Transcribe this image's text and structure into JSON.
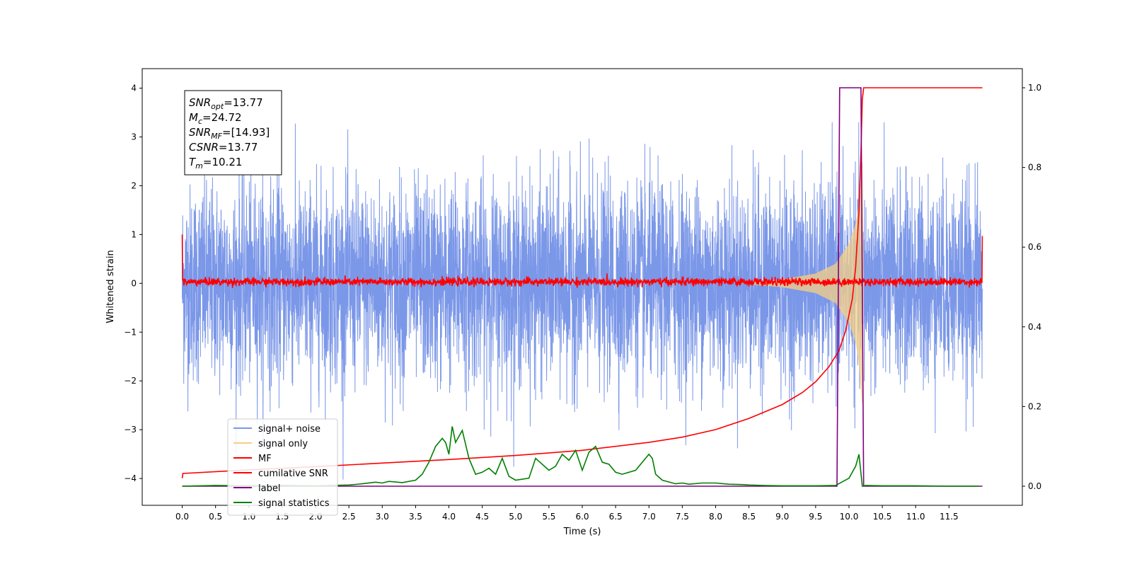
{
  "chart_data": {
    "type": "line",
    "xlabel": "Time (s)",
    "ylabel": "Whitened strain",
    "xlim": [
      -0.6,
      12.6
    ],
    "ylim": [
      -4.55,
      4.4
    ],
    "y2lim": [
      -0.048,
      1.048
    ],
    "x_ticks": [
      "0.0",
      "0.5",
      "1.0",
      "1.5",
      "2.0",
      "2.5",
      "3.0",
      "3.5",
      "4.0",
      "4.5",
      "5.0",
      "5.5",
      "6.0",
      "6.5",
      "7.0",
      "7.5",
      "8.0",
      "8.5",
      "9.0",
      "9.5",
      "10.0",
      "10.5",
      "11.0",
      "11.5"
    ],
    "y_ticks": [
      "4",
      "3",
      "2",
      "1",
      "0",
      "−1",
      "−2",
      "−3",
      "−4"
    ],
    "y2_ticks": [
      "1.0",
      "0.8",
      "0.6",
      "0.4",
      "0.2",
      "0.0"
    ],
    "annotation": {
      "lines": [
        {
          "base": "SNR",
          "sub": "opt",
          "value": "=13.77"
        },
        {
          "base": "M",
          "sub": "c",
          "value": "=24.72"
        },
        {
          "base": "SNR",
          "sub": "MF",
          "value": "=[14.93]"
        },
        {
          "base": "CSNR",
          "sub": "",
          "value": "=13.77"
        },
        {
          "base": "T",
          "sub": "m",
          "value": "=10.21"
        }
      ]
    },
    "legend": {
      "placement": "lower-left",
      "entries": [
        {
          "label": "signal+ noise",
          "color": "#7b97e8"
        },
        {
          "label": "signal only",
          "color": "#f5cf86"
        },
        {
          "label": "MF",
          "color": "#ff0000"
        },
        {
          "label": "cumilative SNR",
          "color": "#ff0000"
        },
        {
          "label": "label",
          "color": "#800080"
        },
        {
          "label": "signal statistics",
          "color": "#008000"
        }
      ]
    },
    "series": [
      {
        "name": "signal+ noise",
        "axis": "left",
        "color": "#7b97e8",
        "description_values": {
          "x_range": [
            0,
            12
          ],
          "approx_std": 1.0,
          "approx_range": [
            -4.1,
            3.3
          ]
        }
      },
      {
        "name": "signal only",
        "axis": "left",
        "color": "#f5cf86",
        "envelope": {
          "x": [
            8.5,
            9.0,
            9.5,
            9.8,
            10.0,
            10.1,
            10.15,
            10.2,
            10.22
          ],
          "amp": [
            0.02,
            0.08,
            0.2,
            0.4,
            0.8,
            1.2,
            1.6,
            2.5,
            0
          ]
        }
      },
      {
        "name": "MF",
        "axis": "left",
        "color": "#ff0000",
        "description_values": {
          "x_range": [
            0,
            12
          ],
          "approx_range": [
            -0.1,
            0.2
          ],
          "edge_values": [
            1.0,
            0.97
          ]
        }
      },
      {
        "name": "cumilative SNR",
        "axis": "right",
        "color": "#ff0000",
        "x": [
          0.0,
          0.01,
          1.0,
          2.0,
          3.0,
          4.0,
          5.0,
          6.0,
          7.0,
          7.5,
          8.0,
          8.5,
          9.0,
          9.3,
          9.5,
          9.7,
          9.85,
          9.95,
          10.05,
          10.1,
          10.15,
          10.18,
          10.2,
          10.22,
          10.3,
          12.0
        ],
        "values": [
          0.02,
          0.032,
          0.041,
          0.049,
          0.058,
          0.067,
          0.077,
          0.09,
          0.11,
          0.123,
          0.142,
          0.17,
          0.205,
          0.235,
          0.262,
          0.3,
          0.34,
          0.39,
          0.47,
          0.55,
          0.69,
          0.84,
          0.97,
          1.0,
          1.0,
          1.0
        ]
      },
      {
        "name": "label",
        "axis": "right",
        "color": "#800080",
        "x": [
          0.0,
          9.82,
          9.86,
          10.18,
          10.22,
          12.0
        ],
        "values": [
          0.0,
          0.0,
          1.0,
          1.0,
          0.0,
          0.0
        ]
      },
      {
        "name": "signal statistics",
        "axis": "right",
        "color": "#008000",
        "x": [
          0.0,
          0.5,
          1.0,
          1.5,
          2.0,
          2.5,
          2.7,
          2.9,
          3.0,
          3.1,
          3.3,
          3.5,
          3.6,
          3.7,
          3.8,
          3.9,
          3.95,
          4.0,
          4.05,
          4.1,
          4.2,
          4.3,
          4.4,
          4.5,
          4.6,
          4.7,
          4.8,
          4.9,
          5.0,
          5.2,
          5.3,
          5.5,
          5.6,
          5.7,
          5.8,
          5.9,
          6.0,
          6.1,
          6.2,
          6.3,
          6.4,
          6.5,
          6.6,
          6.8,
          7.0,
          7.05,
          7.1,
          7.2,
          7.4,
          7.5,
          7.6,
          7.8,
          8.0,
          8.2,
          8.4,
          8.5,
          8.7,
          9.0,
          9.5,
          9.8,
          10.0,
          10.1,
          10.15,
          10.2,
          10.25,
          10.5,
          11.0,
          11.5,
          11.95
        ],
        "values": [
          0.0,
          0.002,
          0.001,
          0.002,
          0.001,
          0.003,
          0.006,
          0.01,
          0.008,
          0.012,
          0.009,
          0.015,
          0.03,
          0.06,
          0.1,
          0.12,
          0.11,
          0.08,
          0.15,
          0.11,
          0.14,
          0.07,
          0.03,
          0.035,
          0.045,
          0.03,
          0.07,
          0.025,
          0.015,
          0.02,
          0.07,
          0.04,
          0.05,
          0.08,
          0.065,
          0.09,
          0.04,
          0.085,
          0.1,
          0.06,
          0.055,
          0.035,
          0.03,
          0.04,
          0.08,
          0.07,
          0.03,
          0.015,
          0.006,
          0.008,
          0.005,
          0.008,
          0.008,
          0.005,
          0.004,
          0.003,
          0.002,
          0.001,
          0.001,
          0.002,
          0.02,
          0.05,
          0.08,
          0.0,
          0.002,
          0.001,
          0.001,
          0.0,
          0.0
        ]
      }
    ]
  }
}
